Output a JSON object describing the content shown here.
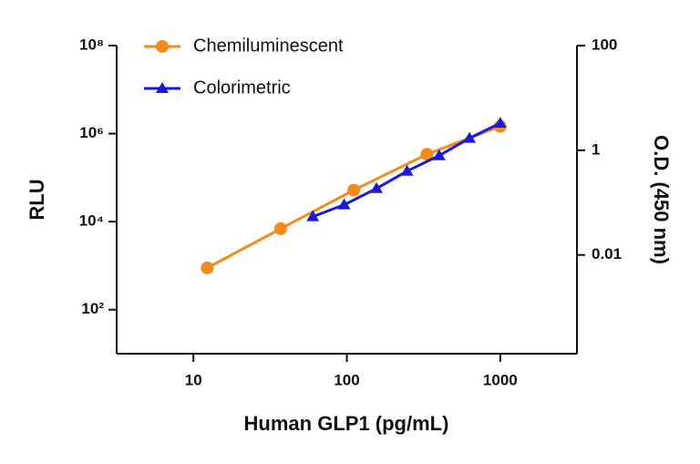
{
  "chart_data": {
    "type": "line",
    "log_x": true,
    "log_y": true,
    "x_label": "Human GLP1 (pg/mL)",
    "y_label": "RLU",
    "y2_label": "O.D. (450 nm)",
    "xlim": [
      3.16,
      3162
    ],
    "xticks": [
      10,
      100,
      1000
    ],
    "ylim": [
      10,
      100000000
    ],
    "yticks": [
      {
        "value": 100,
        "label": "10²"
      },
      {
        "value": 10000,
        "label": "10⁴"
      },
      {
        "value": 1000000,
        "label": "10⁶"
      },
      {
        "value": 100000000,
        "label": "10⁸"
      }
    ],
    "y2lim": [
      0.00013,
      100
    ],
    "y2ticks": [
      0.01,
      1,
      100
    ],
    "legend": "top-left",
    "series": [
      {
        "name": "Chemiluminescent",
        "color": "#f28a1c",
        "marker": "circle",
        "x": [
          12.3,
          37,
          111,
          333,
          1000
        ],
        "values": [
          890,
          6900,
          52000,
          340000,
          1460000
        ]
      },
      {
        "name": "Colorimetric",
        "color": "#1a1adb",
        "marker": "triangle",
        "axis": "y2",
        "x": [
          60,
          96,
          156,
          247,
          400,
          630,
          1000
        ],
        "values": [
          0.054,
          0.091,
          0.186,
          0.4,
          0.79,
          1.7,
          3.3
        ]
      }
    ]
  }
}
